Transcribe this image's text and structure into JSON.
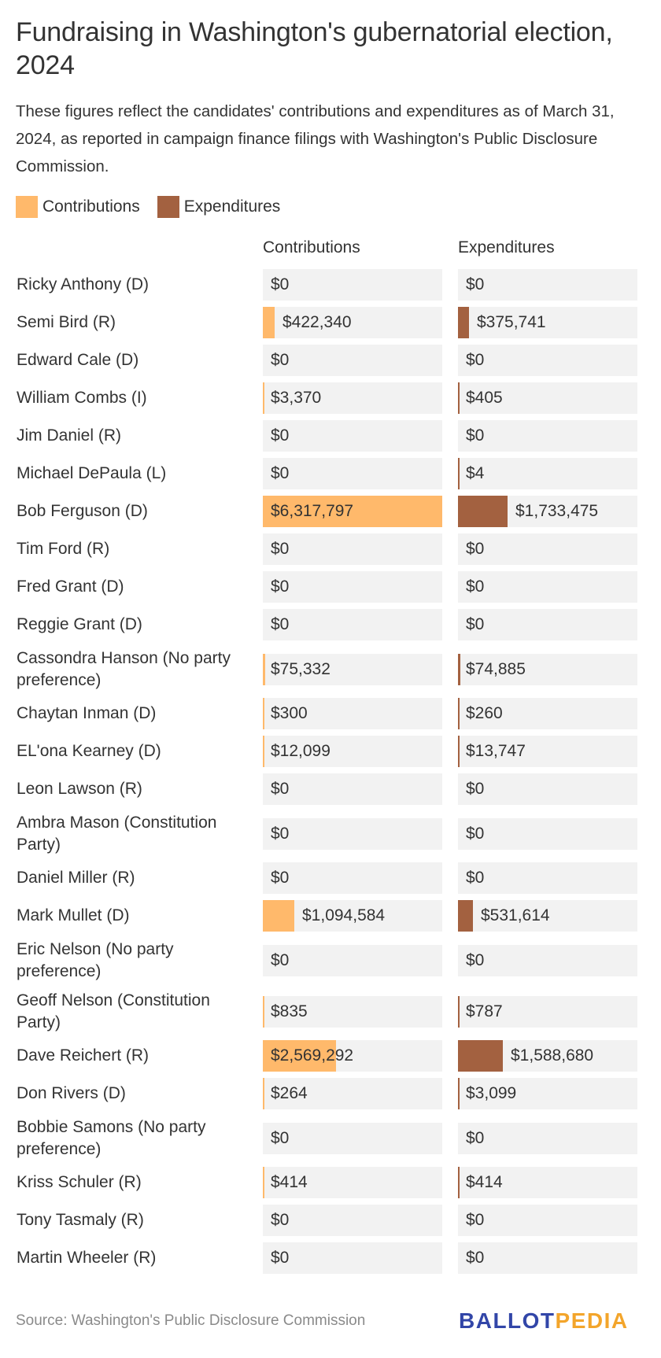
{
  "header": {
    "title": "Fundraising in Washington's gubernatorial election, 2024",
    "subtitle": "These figures reflect the candidates' contributions and expenditures as of March 31, 2024, as reported in campaign finance filings with Washington's Public Disclosure Commission."
  },
  "colors": {
    "contributions": "#ffb96b",
    "expenditures": "#a36140",
    "cell_bg": "#f2f2f2",
    "text": "#333333"
  },
  "legend": [
    {
      "label": "Contributions",
      "color": "#ffb96b"
    },
    {
      "label": "Expenditures",
      "color": "#a36140"
    }
  ],
  "columns": {
    "contributions": "Contributions",
    "expenditures": "Expenditures"
  },
  "footer": {
    "source": "Source: Washington's Public Disclosure Commission",
    "logo_part1": "BALLOT",
    "logo_part2": "PEDIA"
  },
  "chart_data": {
    "type": "bar",
    "title": "Fundraising in Washington's gubernatorial election, 2024",
    "subtitle": "These figures reflect the candidates' contributions and expenditures as of March 31, 2024, as reported in campaign finance filings with Washington's Public Disclosure Commission.",
    "orientation": "horizontal",
    "legend_position": "top",
    "scale_max": 6317797,
    "categories": [
      "Ricky Anthony (D)",
      "Semi Bird (R)",
      "Edward Cale (D)",
      "William Combs (I)",
      "Jim Daniel (R)",
      "Michael DePaula (L)",
      "Bob Ferguson (D)",
      "Tim Ford (R)",
      "Fred Grant (D)",
      "Reggie Grant (D)",
      "Cassondra Hanson (No party preference)",
      "Chaytan Inman (D)",
      "EL'ona Kearney (D)",
      "Leon Lawson (R)",
      "Ambra Mason (Constitution Party)",
      "Daniel Miller (R)",
      "Mark Mullet (D)",
      "Eric Nelson (No party preference)",
      "Geoff Nelson (Constitution Party)",
      "Dave Reichert (R)",
      "Don Rivers (D)",
      "Bobbie Samons (No party preference)",
      "Kriss Schuler (R)",
      "Tony Tasmaly (R)",
      "Martin Wheeler (R)"
    ],
    "series": [
      {
        "name": "Contributions",
        "color": "#ffb96b",
        "values": [
          0,
          422340,
          0,
          3370,
          0,
          0,
          6317797,
          0,
          0,
          0,
          75332,
          300,
          12099,
          0,
          0,
          0,
          1094584,
          0,
          835,
          2569292,
          264,
          0,
          414,
          0,
          0
        ],
        "labels": [
          "$0",
          "$422,340",
          "$0",
          "$3,370",
          "$0",
          "$0",
          "$6,317,797",
          "$0",
          "$0",
          "$0",
          "$75,332",
          "$300",
          "$12,099",
          "$0",
          "$0",
          "$0",
          "$1,094,584",
          "$0",
          "$835",
          "$2,569,292",
          "$264",
          "$0",
          "$414",
          "$0",
          "$0"
        ]
      },
      {
        "name": "Expenditures",
        "color": "#a36140",
        "values": [
          0,
          375741,
          0,
          405,
          0,
          4,
          1733475,
          0,
          0,
          0,
          74885,
          260,
          13747,
          0,
          0,
          0,
          531614,
          0,
          787,
          1588680,
          3099,
          0,
          414,
          0,
          0
        ],
        "labels": [
          "$0",
          "$375,741",
          "$0",
          "$405",
          "$0",
          "$4",
          "$1,733,475",
          "$0",
          "$0",
          "$0",
          "$74,885",
          "$260",
          "$13,747",
          "$0",
          "$0",
          "$0",
          "$531,614",
          "$0",
          "$787",
          "$1,588,680",
          "$3,099",
          "$0",
          "$414",
          "$0",
          "$0"
        ]
      }
    ]
  },
  "rows": [
    {
      "name": "Ricky Anthony (D)",
      "lines": 1,
      "contrib": 0,
      "contrib_label": "$0",
      "expend": 0,
      "expend_label": "$0"
    },
    {
      "name": "Semi Bird (R)",
      "lines": 1,
      "contrib": 422340,
      "contrib_label": "$422,340",
      "expend": 375741,
      "expend_label": "$375,741"
    },
    {
      "name": "Edward Cale (D)",
      "lines": 1,
      "contrib": 0,
      "contrib_label": "$0",
      "expend": 0,
      "expend_label": "$0"
    },
    {
      "name": "William Combs (I)",
      "lines": 1,
      "contrib": 3370,
      "contrib_label": "$3,370",
      "expend": 405,
      "expend_label": "$405"
    },
    {
      "name": "Jim Daniel (R)",
      "lines": 1,
      "contrib": 0,
      "contrib_label": "$0",
      "expend": 0,
      "expend_label": "$0"
    },
    {
      "name": "Michael DePaula (L)",
      "lines": 1,
      "contrib": 0,
      "contrib_label": "$0",
      "expend": 4,
      "expend_label": "$4"
    },
    {
      "name": "Bob Ferguson (D)",
      "lines": 1,
      "contrib": 6317797,
      "contrib_label": "$6,317,797",
      "expend": 1733475,
      "expend_label": "$1,733,475"
    },
    {
      "name": "Tim Ford (R)",
      "lines": 1,
      "contrib": 0,
      "contrib_label": "$0",
      "expend": 0,
      "expend_label": "$0"
    },
    {
      "name": "Fred Grant (D)",
      "lines": 1,
      "contrib": 0,
      "contrib_label": "$0",
      "expend": 0,
      "expend_label": "$0"
    },
    {
      "name": "Reggie Grant (D)",
      "lines": 1,
      "contrib": 0,
      "contrib_label": "$0",
      "expend": 0,
      "expend_label": "$0"
    },
    {
      "name": "Cassondra Hanson (No party preference)",
      "lines": 2,
      "contrib": 75332,
      "contrib_label": "$75,332",
      "expend": 74885,
      "expend_label": "$74,885"
    },
    {
      "name": "Chaytan Inman (D)",
      "lines": 1,
      "contrib": 300,
      "contrib_label": "$300",
      "expend": 260,
      "expend_label": "$260"
    },
    {
      "name": "EL'ona Kearney (D)",
      "lines": 1,
      "contrib": 12099,
      "contrib_label": "$12,099",
      "expend": 13747,
      "expend_label": "$13,747"
    },
    {
      "name": "Leon Lawson (R)",
      "lines": 1,
      "contrib": 0,
      "contrib_label": "$0",
      "expend": 0,
      "expend_label": "$0"
    },
    {
      "name": "Ambra Mason (Constitution Party)",
      "lines": 2,
      "contrib": 0,
      "contrib_label": "$0",
      "expend": 0,
      "expend_label": "$0"
    },
    {
      "name": "Daniel Miller (R)",
      "lines": 1,
      "contrib": 0,
      "contrib_label": "$0",
      "expend": 0,
      "expend_label": "$0"
    },
    {
      "name": "Mark Mullet (D)",
      "lines": 1,
      "contrib": 1094584,
      "contrib_label": "$1,094,584",
      "expend": 531614,
      "expend_label": "$531,614"
    },
    {
      "name": "Eric Nelson (No party preference)",
      "lines": 2,
      "contrib": 0,
      "contrib_label": "$0",
      "expend": 0,
      "expend_label": "$0"
    },
    {
      "name": "Geoff Nelson (Constitution Party)",
      "lines": 2,
      "contrib": 835,
      "contrib_label": "$835",
      "expend": 787,
      "expend_label": "$787"
    },
    {
      "name": "Dave Reichert (R)",
      "lines": 1,
      "contrib": 2569292,
      "contrib_label": "$2,569,292",
      "expend": 1588680,
      "expend_label": "$1,588,680"
    },
    {
      "name": "Don Rivers (D)",
      "lines": 1,
      "contrib": 264,
      "contrib_label": "$264",
      "expend": 3099,
      "expend_label": "$3,099"
    },
    {
      "name": "Bobbie Samons (No party preference)",
      "lines": 2,
      "contrib": 0,
      "contrib_label": "$0",
      "expend": 0,
      "expend_label": "$0"
    },
    {
      "name": "Kriss Schuler (R)",
      "lines": 1,
      "contrib": 414,
      "contrib_label": "$414",
      "expend": 414,
      "expend_label": "$414"
    },
    {
      "name": "Tony Tasmaly (R)",
      "lines": 1,
      "contrib": 0,
      "contrib_label": "$0",
      "expend": 0,
      "expend_label": "$0"
    },
    {
      "name": "Martin Wheeler (R)",
      "lines": 1,
      "contrib": 0,
      "contrib_label": "$0",
      "expend": 0,
      "expend_label": "$0"
    }
  ]
}
